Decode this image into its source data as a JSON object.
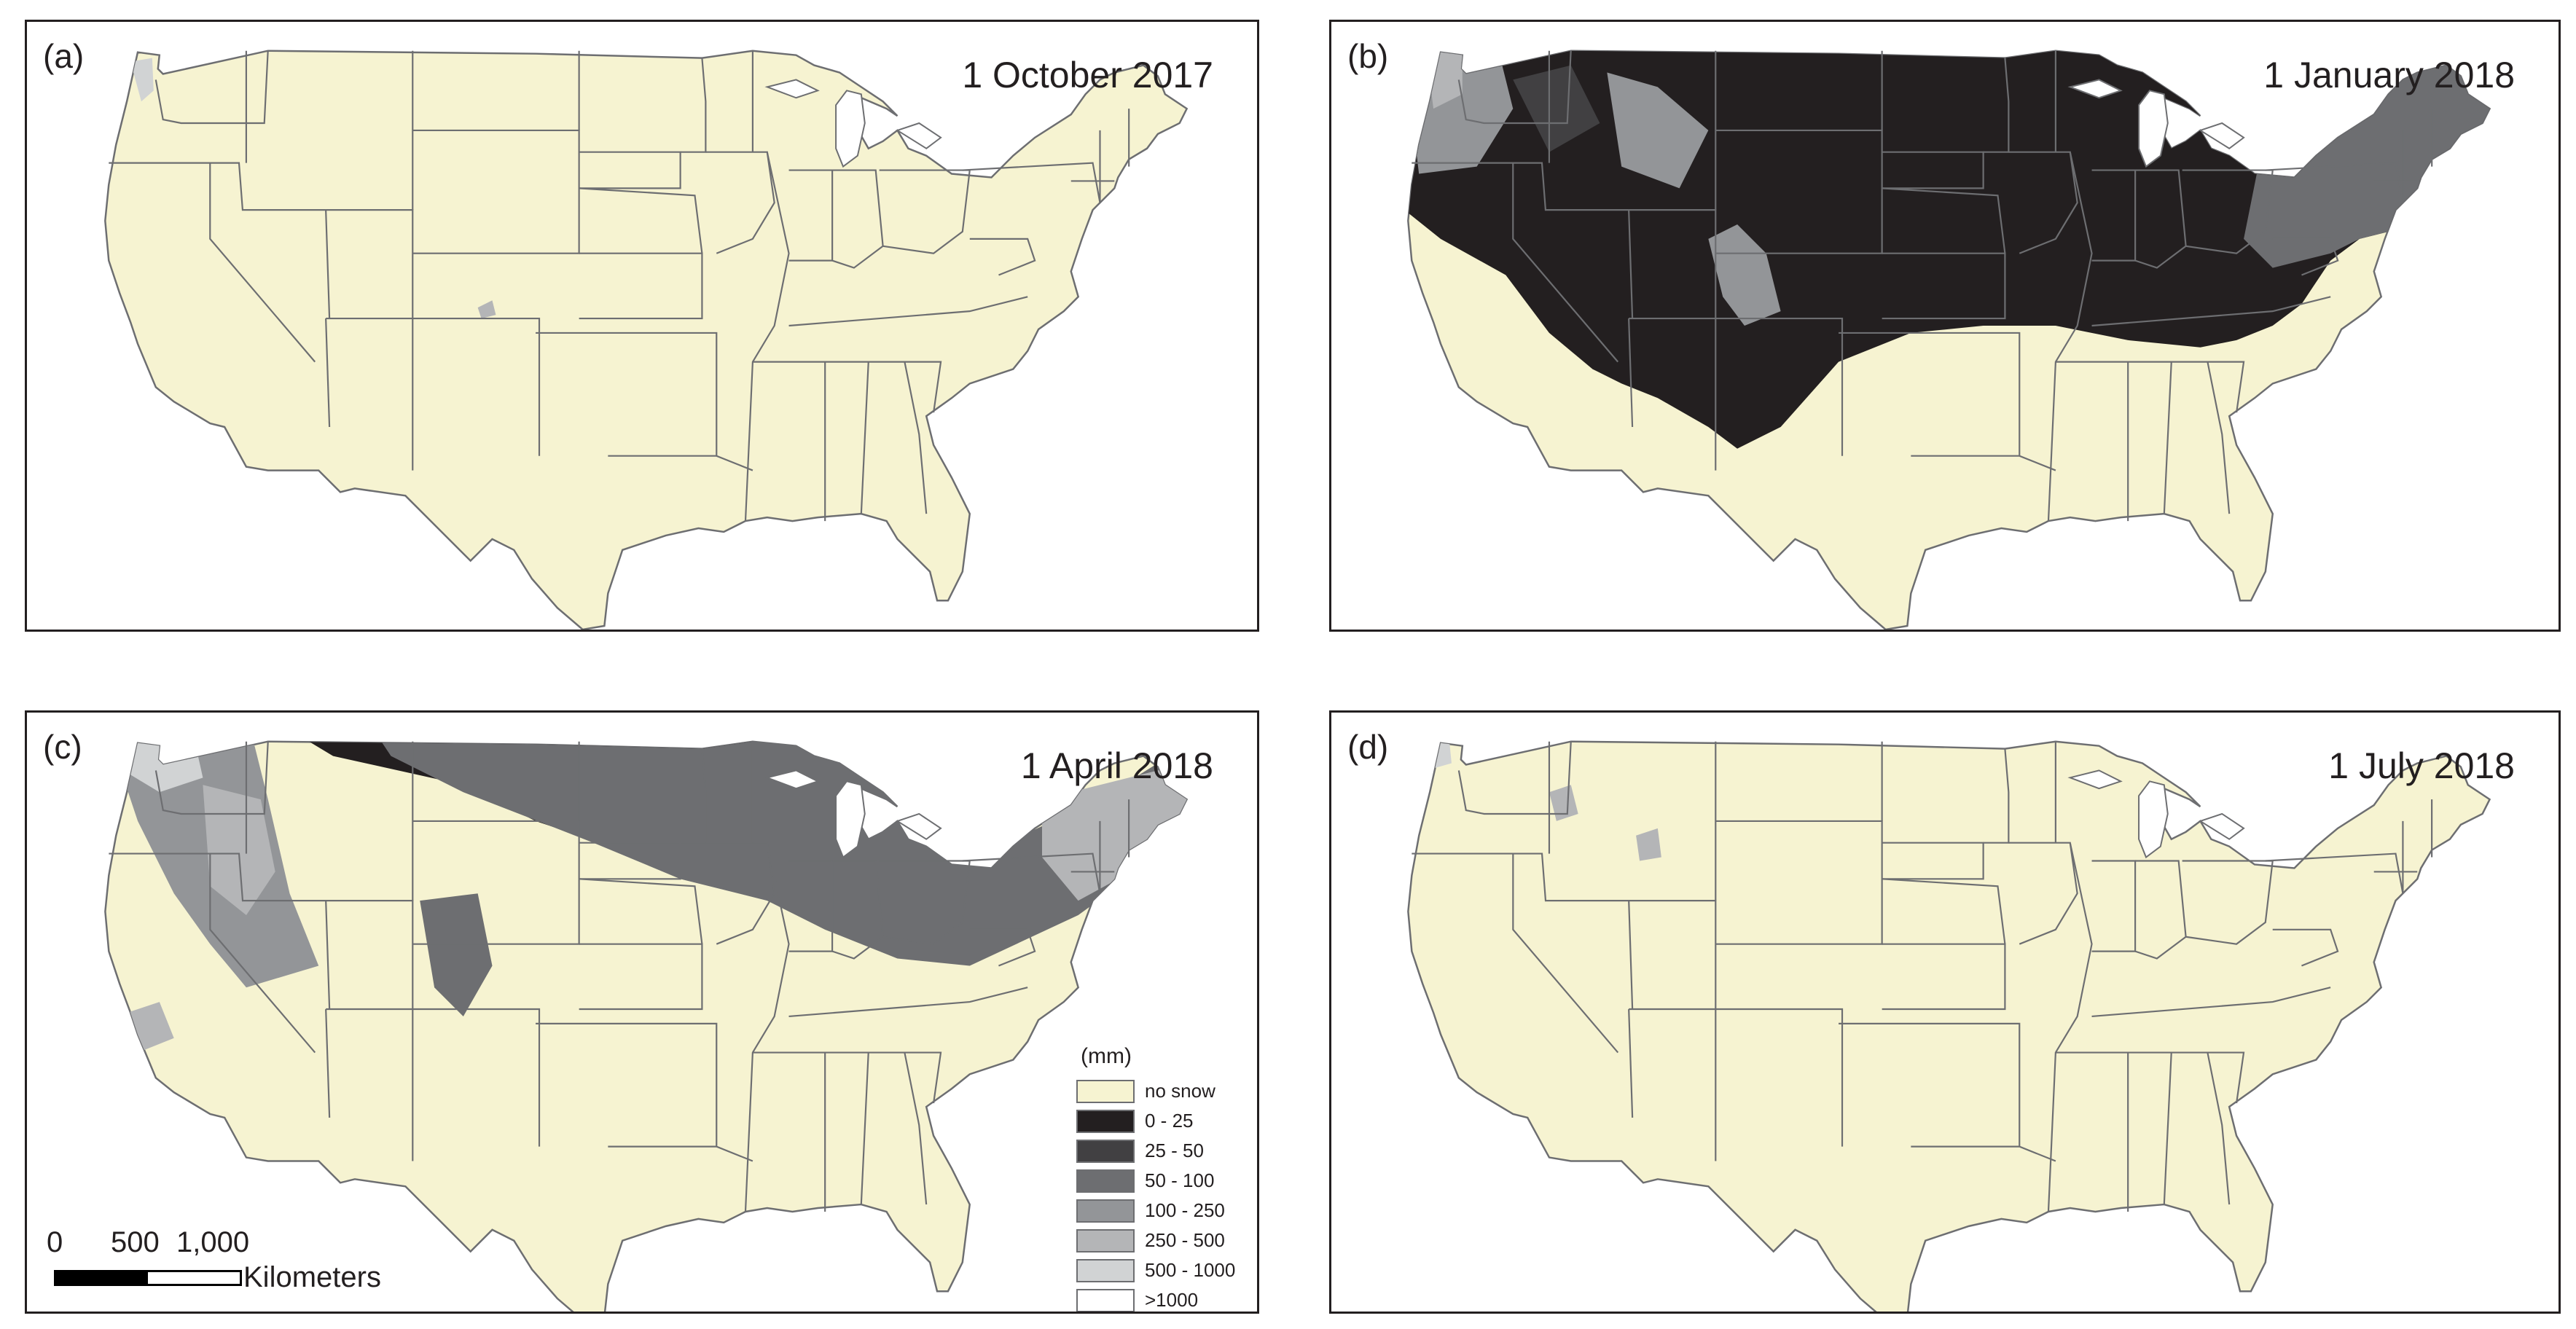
{
  "panels": [
    {
      "id": "a",
      "label": "(a)",
      "date": "1 October 2017"
    },
    {
      "id": "b",
      "label": "(b)",
      "date": "1 January 2018"
    },
    {
      "id": "c",
      "label": "(c)",
      "date": "1 April 2018"
    },
    {
      "id": "d",
      "label": "(d)",
      "date": "1 July 2018"
    }
  ],
  "colors": {
    "land": "#f6f3d1",
    "border": "#6d6e71",
    "water": "#ffffff",
    "snow_0_25": "#231f20",
    "snow_25_50": "#414042",
    "snow_50_100": "#6d6e71",
    "snow_100_250": "#939598",
    "snow_250_500": "#b4b5b7",
    "snow_500_1000": "#d1d3d4",
    "snow_gt_1000": "#ffffff"
  },
  "legend": {
    "title": "(mm)",
    "items": [
      {
        "label": "no snow",
        "color": "#f6f3d1"
      },
      {
        "label": "0 - 25",
        "color": "#231f20"
      },
      {
        "label": "25 - 50",
        "color": "#414042"
      },
      {
        "label": "50 - 100",
        "color": "#6d6e71"
      },
      {
        "label": "100 - 250",
        "color": "#939598"
      },
      {
        "label": "250 - 500",
        "color": "#b4b5b7"
      },
      {
        "label": "500 - 1000",
        "color": "#d1d3d4"
      },
      {
        "label": ">1000",
        "color": "#ffffff"
      }
    ]
  },
  "scale_bar": {
    "ticks": [
      "0",
      "500",
      "1,000"
    ],
    "units": "Kilometers"
  }
}
